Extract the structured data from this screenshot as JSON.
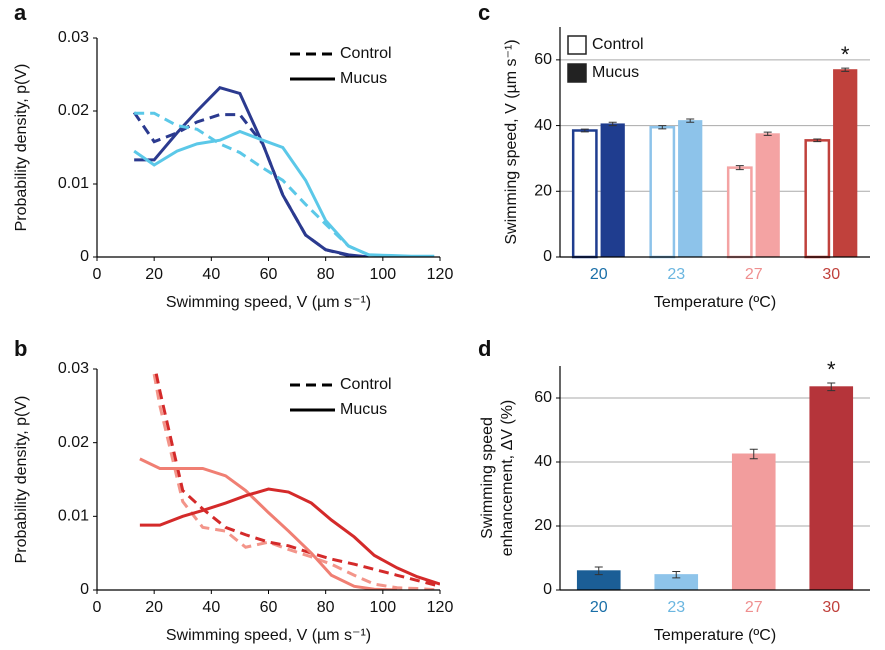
{
  "chart_data": [
    {
      "type": "line",
      "panel": "a",
      "xlabel": "Swimming speed, V (µm s⁻¹)",
      "ylabel": "Probability density, p(V)",
      "xlim": [
        0,
        120
      ],
      "ylim": [
        0,
        0.03
      ],
      "xticks": [
        0,
        20,
        40,
        60,
        80,
        100,
        120
      ],
      "yticks": [
        0,
        0.01,
        0.02,
        0.03
      ],
      "legend": [
        {
          "label": "Control",
          "style": "dashed"
        },
        {
          "label": "Mucus",
          "style": "solid"
        }
      ],
      "x": [
        13,
        20,
        28,
        35,
        43,
        50,
        58,
        65,
        73,
        80,
        88,
        95,
        103,
        110,
        118
      ],
      "series": [
        {
          "color": "#2b3a8f",
          "style": "dashed",
          "values": [
            0.0198,
            0.0158,
            0.017,
            0.0185,
            0.0195,
            0.0195,
            0.0155,
            0.0085,
            0.003,
            0.001,
            0.0002,
            0,
            null,
            null,
            null
          ]
        },
        {
          "color": "#2b3a8f",
          "style": "solid",
          "values": [
            0.0133,
            0.0133,
            0.017,
            0.02,
            0.0232,
            0.0224,
            0.0155,
            0.0085,
            0.003,
            0.001,
            0.0003,
            0,
            null,
            null,
            null
          ]
        },
        {
          "color": "#5bc8e8",
          "style": "dashed",
          "values": [
            0.0197,
            0.0197,
            0.018,
            0.0175,
            0.0155,
            0.0143,
            0.0122,
            0.0105,
            0.0072,
            0.0045,
            0.0015,
            0.0003,
            0,
            0,
            0
          ]
        },
        {
          "color": "#5bc8e8",
          "style": "solid",
          "values": [
            0.0145,
            0.0126,
            0.0145,
            0.0155,
            0.016,
            0.0172,
            0.016,
            0.015,
            0.0105,
            0.005,
            0.0015,
            0.0003,
            0.0002,
            0.0001,
            0.0001
          ]
        }
      ]
    },
    {
      "type": "line",
      "panel": "b",
      "xlabel": "Swimming speed, V (µm s⁻¹)",
      "ylabel": "Probability density, p(V)",
      "xlim": [
        0,
        120
      ],
      "ylim": [
        0,
        0.03
      ],
      "xticks": [
        0,
        20,
        40,
        60,
        80,
        100,
        120
      ],
      "yticks": [
        0,
        0.01,
        0.02,
        0.03
      ],
      "legend": [
        {
          "label": "Control",
          "style": "dashed"
        },
        {
          "label": "Mucus",
          "style": "solid"
        }
      ],
      "x": [
        15,
        22,
        30,
        37,
        45,
        52,
        60,
        67,
        75,
        82,
        90,
        97,
        105,
        112,
        120
      ],
      "series": [
        {
          "color": "#f3958a",
          "style": "dashed",
          "values": [
            0.04,
            0.025,
            0.012,
            0.0085,
            0.008,
            0.0058,
            0.0065,
            0.0055,
            0.0045,
            0.0035,
            0.002,
            0.0008,
            0.0003,
            0.0002,
            0
          ]
        },
        {
          "color": "#d42a2a",
          "style": "dashed",
          "values": [
            0.04,
            0.027,
            0.0135,
            0.011,
            0.0085,
            0.0075,
            0.0065,
            0.006,
            0.005,
            0.0042,
            0.0035,
            0.0028,
            0.002,
            0.0013,
            0.0005
          ]
        },
        {
          "color": "#f07f73",
          "style": "solid",
          "values": [
            0.0178,
            0.0165,
            0.0165,
            0.0165,
            0.0155,
            0.0135,
            0.0105,
            0.008,
            0.005,
            0.002,
            0.0005,
            0.0001,
            0,
            null,
            null
          ]
        },
        {
          "color": "#d42a2a",
          "style": "solid",
          "values": [
            0.0088,
            0.0088,
            0.01,
            0.0108,
            0.0118,
            0.0128,
            0.0137,
            0.0133,
            0.0118,
            0.0095,
            0.0072,
            0.0047,
            0.003,
            0.0018,
            0.0008
          ]
        }
      ]
    },
    {
      "type": "bar",
      "panel": "c",
      "xlabel": "Temperature (ºC)",
      "ylabel": "Swimming speed, V (µm s⁻¹)",
      "ylim": [
        0,
        70
      ],
      "yticks": [
        0,
        20,
        40,
        60
      ],
      "grid": true,
      "categories": [
        "20",
        "23",
        "27",
        "30"
      ],
      "category_colors": [
        "#1a6fa8",
        "#6bb6e0",
        "#ef8f8f",
        "#c0413c"
      ],
      "series": [
        {
          "name": "Control",
          "style": "outline",
          "colors": [
            "#1f3d8f",
            "#8dc3ea",
            "#f4a3a3",
            "#c0413c"
          ],
          "values": [
            38.5,
            39.5,
            27.2,
            35.5
          ],
          "errors": [
            0.4,
            0.5,
            0.6,
            0.4
          ]
        },
        {
          "name": "Mucus",
          "style": "filled",
          "colors": [
            "#1f3d8f",
            "#8dc3ea",
            "#f4a3a3",
            "#c0413c"
          ],
          "values": [
            40.5,
            41.5,
            37.5,
            57
          ],
          "errors": [
            0.5,
            0.5,
            0.5,
            0.5
          ]
        }
      ],
      "annotations": [
        {
          "text": "*",
          "category": "30",
          "series": "Mucus"
        }
      ]
    },
    {
      "type": "bar",
      "panel": "d",
      "xlabel": "Temperature (ºC)",
      "ylabel": [
        "Swimming speed",
        "enhancement, ΔV (%)"
      ],
      "ylim": [
        0,
        70
      ],
      "yticks": [
        0,
        20,
        40,
        60
      ],
      "grid": true,
      "categories": [
        "20",
        "23",
        "27",
        "30"
      ],
      "category_colors": [
        "#1a6fa8",
        "#6bb6e0",
        "#ef8f8f",
        "#c0413c"
      ],
      "colors": [
        "#1b5e96",
        "#8ec4ea",
        "#f29d9d",
        "#b5343a"
      ],
      "values": [
        6,
        4.8,
        42.5,
        63.5
      ],
      "errors": [
        1.2,
        1,
        1.5,
        1.2
      ],
      "annotations": [
        {
          "text": "*",
          "category": "30"
        }
      ]
    }
  ]
}
